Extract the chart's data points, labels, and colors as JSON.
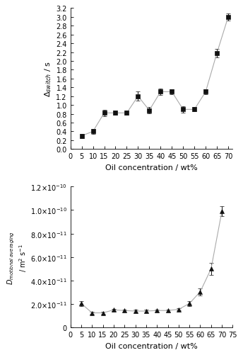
{
  "top": {
    "x": [
      5,
      10,
      15,
      20,
      25,
      30,
      35,
      40,
      45,
      50,
      55,
      60,
      65,
      70
    ],
    "y": [
      0.3,
      0.4,
      0.82,
      0.82,
      0.82,
      1.2,
      0.88,
      1.3,
      1.3,
      0.9,
      0.9,
      1.3,
      2.18,
      3.0
    ],
    "yerr": [
      0.05,
      0.05,
      0.07,
      0.05,
      0.05,
      0.1,
      0.07,
      0.07,
      0.05,
      0.07,
      0.05,
      0.05,
      0.1,
      0.08
    ],
    "xlabel": "Oil concentration / wt%",
    "ylabel": "$\\Delta_{switch}$ / s",
    "xlim": [
      0,
      72
    ],
    "ylim": [
      0.0,
      3.2
    ],
    "yticks": [
      0.0,
      0.2,
      0.4,
      0.6,
      0.8,
      1.0,
      1.2,
      1.4,
      1.6,
      1.8,
      2.0,
      2.2,
      2.4,
      2.6,
      2.8,
      3.0,
      3.2
    ],
    "xticks": [
      0,
      5,
      10,
      15,
      20,
      25,
      30,
      35,
      40,
      45,
      50,
      55,
      60,
      65,
      70
    ]
  },
  "bottom": {
    "x": [
      5,
      10,
      15,
      20,
      25,
      30,
      35,
      40,
      45,
      50,
      55,
      60,
      65,
      70
    ],
    "y": [
      2.05e-11,
      1.25e-11,
      1.25e-11,
      1.5e-11,
      1.45e-11,
      1.4e-11,
      1.4e-11,
      1.45e-11,
      1.45e-11,
      1.55e-11,
      2.05e-11,
      3.05e-11,
      5e-11,
      9.9e-11
    ],
    "yerr": [
      2e-12,
      1e-12,
      1e-12,
      1e-12,
      1e-12,
      1e-12,
      1e-12,
      1e-12,
      1e-12,
      1e-12,
      2e-12,
      3e-12,
      5e-12,
      4e-12
    ],
    "xlabel": "Oil concentration / wt%",
    "ylabel_line1": "$D_{motional\\ averaging}$",
    "ylabel_line2": "/ m$^2$ s$^{-1}$",
    "xlim": [
      0,
      75
    ],
    "ylim": [
      0,
      1.2e-10
    ],
    "yticks": [
      0,
      2e-11,
      4e-11,
      6e-11,
      8e-11,
      1e-10,
      1.2e-10
    ],
    "ytick_labels": [
      "0",
      "2.0×10$^{-11}$",
      "4.0×10$^{-11}$",
      "6.0×10$^{-11}$",
      "8.0×10$^{-11}$",
      "1.0×10$^{-10}$",
      "1.2×10$^{-10}$"
    ],
    "xticks": [
      0,
      5,
      10,
      15,
      20,
      25,
      30,
      35,
      40,
      45,
      50,
      55,
      60,
      65,
      70,
      75
    ]
  },
  "line_color": "#aaaaaa",
  "marker_color": "#111111",
  "marker_size": 4,
  "line_width": 0.8,
  "capsize": 2,
  "elinewidth": 0.7
}
